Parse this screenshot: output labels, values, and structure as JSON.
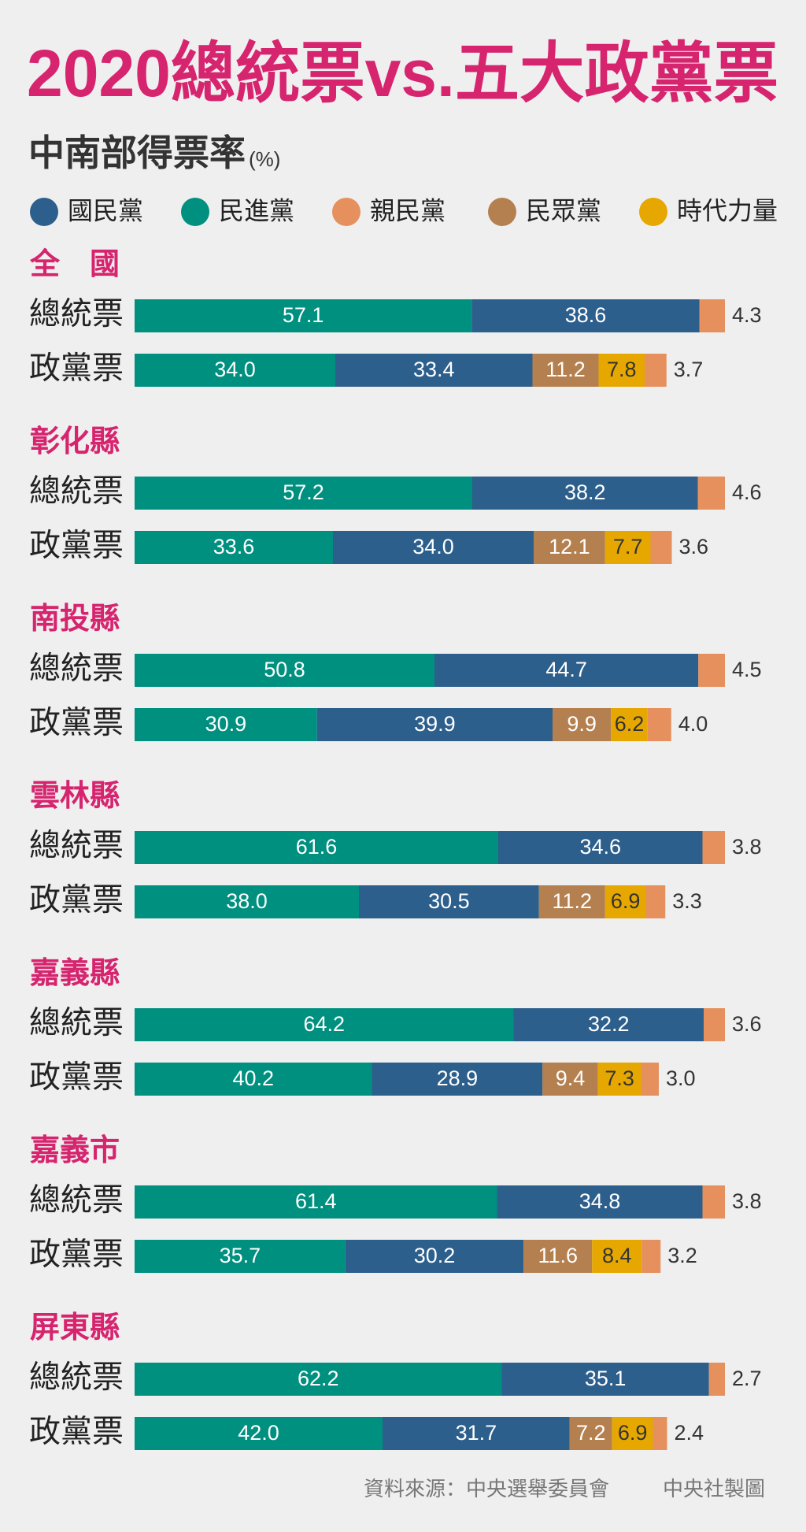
{
  "chart_data": {
    "type": "stacked-bar",
    "title": "2020總統票vs.五大政黨票",
    "subtitle": "中南部得票率",
    "unit": "(%)",
    "groups": [
      "全　國",
      "彰化縣",
      "南投縣",
      "雲林縣",
      "嘉義縣",
      "嘉義市",
      "屏東縣"
    ],
    "categories": [
      "總統票",
      "政黨票",
      "總統票",
      "政黨票",
      "總統票",
      "政黨票",
      "總統票",
      "政黨票",
      "總統票",
      "政黨票",
      "總統票",
      "政黨票",
      "總統票",
      "政黨票"
    ],
    "series": [
      {
        "name": "國民黨",
        "color": "#2d5f8d",
        "values": [
          38.6,
          33.4,
          38.2,
          34,
          44.7,
          39.9,
          34.6,
          30.5,
          32.2,
          28.9,
          34.8,
          30.2,
          35.1,
          31.7
        ],
        "value_labels": [
          "38.6",
          "33.4",
          "38.2",
          "34.0",
          "44.7",
          "39.9",
          "34.6",
          "30.5",
          "32.2",
          "28.9",
          "34.8",
          "30.2",
          "35.1",
          "31.7"
        ]
      },
      {
        "name": "民進黨",
        "color": "#00907f",
        "values": [
          57.1,
          34,
          57.2,
          33.6,
          50.8,
          30.9,
          61.6,
          38,
          64.2,
          40.2,
          61.4,
          35.7,
          62.2,
          42
        ],
        "value_labels": [
          "57.1",
          "34.0",
          "57.2",
          "33.6",
          "50.8",
          "30.9",
          "61.6",
          "38.0",
          "64.2",
          "40.2",
          "61.4",
          "35.7",
          "62.2",
          "42.0"
        ]
      },
      {
        "name": "親民黨",
        "color": "#e6905e",
        "values": [
          4.3,
          3.7,
          4.6,
          3.6,
          4.5,
          4,
          3.8,
          3.3,
          3.6,
          3,
          3.8,
          3.2,
          2.7,
          2.4
        ],
        "value_labels": [
          "4.3",
          "3.7",
          "4.6",
          "3.6",
          "4.5",
          "4.0",
          "3.8",
          "3.3",
          "3.6",
          "3.0",
          "3.8",
          "3.2",
          "2.7",
          "2.4"
        ]
      },
      {
        "name": "民眾黨",
        "color": "#b5804f",
        "values": [
          null,
          11.2,
          null,
          12.1,
          null,
          9.9,
          null,
          11.2,
          null,
          9.4,
          null,
          11.6,
          null,
          7.2
        ],
        "value_labels": [
          null,
          "11.2",
          null,
          "12.1",
          null,
          "9.9",
          null,
          "11.2",
          null,
          "9.4",
          null,
          "11.6",
          null,
          "7.2"
        ]
      },
      {
        "name": "時代力量",
        "color": "#e6a800",
        "values": [
          null,
          7.8,
          null,
          7.7,
          null,
          6.2,
          null,
          6.9,
          null,
          7.3,
          null,
          8.4,
          null,
          6.9
        ],
        "value_labels": [
          null,
          "7.8",
          null,
          "7.7",
          null,
          "6.2",
          null,
          "6.9",
          null,
          "7.3",
          null,
          "8.4",
          null,
          "6.9"
        ]
      }
    ],
    "source": "資料來源：中央選舉委員會",
    "credit": "中央社製圖"
  }
}
